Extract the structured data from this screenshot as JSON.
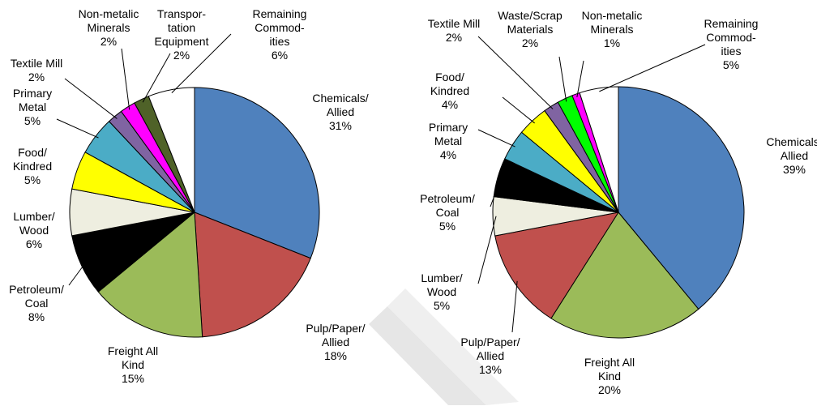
{
  "chart_data": [
    {
      "type": "pie",
      "categories": [
        "Chemicals/\nAllied",
        "Pulp/Paper/\nAllied",
        "Freight All\nKind",
        "Petroleum/\nCoal",
        "Lumber/\nWood",
        "Food/\nKindred",
        "Primary\nMetal",
        "Textile Mill",
        "Non-metalic\nMinerals",
        "Transpor-\ntation\nEquipment",
        "Remaining\nCommod-\nities"
      ],
      "values": [
        31,
        18,
        15,
        8,
        6,
        5,
        5,
        2,
        2,
        2,
        6
      ],
      "value_labels": [
        "31%",
        "18%",
        "15%",
        "8%",
        "6%",
        "5%",
        "5%",
        "2%",
        "2%",
        "2%",
        "6%"
      ],
      "colors": [
        "#4f81bd",
        "#c0504d",
        "#9bbb59",
        "#000000",
        "#eeeee0",
        "#ffff00",
        "#4bacc6",
        "#8064a2",
        "#ff00ff",
        "#4f6228",
        "#ffffff"
      ]
    },
    {
      "type": "pie",
      "categories": [
        "Chemicals/\nAllied",
        "Freight All\nKind",
        "Pulp/Paper/\nAllied",
        "Lumber/\nWood",
        "Petroleum/\nCoal",
        "Primary\nMetal",
        "Food/\nKindred",
        "Textile Mill",
        "Waste/Scrap\nMaterials",
        "Non-metalic\nMinerals",
        "Remaining\nCommod-\nities"
      ],
      "values": [
        39,
        20,
        13,
        5,
        5,
        4,
        4,
        2,
        2,
        1,
        5
      ],
      "value_labels": [
        "39%",
        "20%",
        "13%",
        "5%",
        "5%",
        "4%",
        "4%",
        "2%",
        "2%",
        "1%",
        "5%"
      ],
      "colors": [
        "#4f81bd",
        "#9bbb59",
        "#c0504d",
        "#eeeee0",
        "#000000",
        "#4bacc6",
        "#ffff00",
        "#8064a2",
        "#00ff00",
        "#ff00ff",
        "#ffffff"
      ]
    }
  ]
}
